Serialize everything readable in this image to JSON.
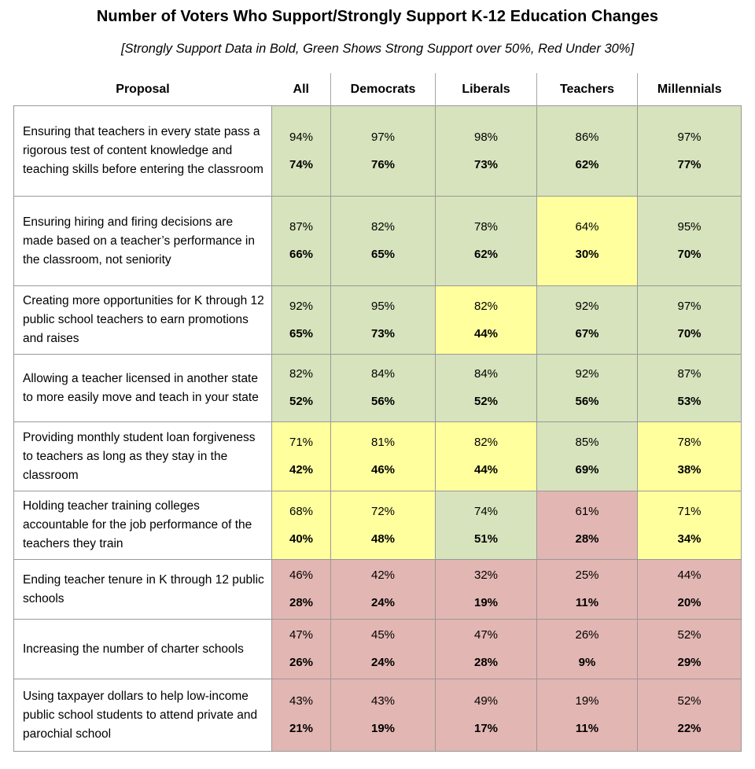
{
  "title": "Number of Voters Who Support/Strongly Support K-12 Education Changes",
  "subtitle": "[Strongly Support Data in Bold, Green Shows Strong Support over 50%, Red Under 30%]",
  "colors": {
    "green": "#d7e3bc",
    "yellow": "#ffff9e",
    "red": "#e2b6b2"
  },
  "chart_data": {
    "type": "table",
    "title": "Number of Voters Who Support/Strongly Support K-12 Education Changes",
    "subtitle": "[Strongly Support Data in Bold, Green Shows Strong Support over 50%, Red Under 30%]",
    "unit": "%",
    "columns": [
      "Proposal",
      "All",
      "Democrats",
      "Liberals",
      "Teachers",
      "Millennials"
    ],
    "rows": [
      {
        "proposal": "Ensuring that teachers in every state pass a rigorous test of content knowledge and teaching skills before entering the classroom",
        "cells": [
          {
            "support": 94,
            "strong": 74,
            "color": "green"
          },
          {
            "support": 97,
            "strong": 76,
            "color": "green"
          },
          {
            "support": 98,
            "strong": 73,
            "color": "green"
          },
          {
            "support": 86,
            "strong": 62,
            "color": "green"
          },
          {
            "support": 97,
            "strong": 77,
            "color": "green"
          }
        ]
      },
      {
        "proposal": "Ensuring hiring and firing decisions are made based on a teacher’s performance in the classroom, not seniority",
        "cells": [
          {
            "support": 87,
            "strong": 66,
            "color": "green"
          },
          {
            "support": 82,
            "strong": 65,
            "color": "green"
          },
          {
            "support": 78,
            "strong": 62,
            "color": "green"
          },
          {
            "support": 64,
            "strong": 30,
            "color": "yellow"
          },
          {
            "support": 95,
            "strong": 70,
            "color": "green"
          }
        ]
      },
      {
        "proposal": "Creating more opportunities for K through 12 public school teachers to earn promotions and raises",
        "cells": [
          {
            "support": 92,
            "strong": 65,
            "color": "green"
          },
          {
            "support": 95,
            "strong": 73,
            "color": "green"
          },
          {
            "support": 82,
            "strong": 44,
            "color": "yellow"
          },
          {
            "support": 92,
            "strong": 67,
            "color": "green"
          },
          {
            "support": 97,
            "strong": 70,
            "color": "green"
          }
        ]
      },
      {
        "proposal": "Allowing a teacher licensed in another state to more easily move and teach in your state",
        "cells": [
          {
            "support": 82,
            "strong": 52,
            "color": "green"
          },
          {
            "support": 84,
            "strong": 56,
            "color": "green"
          },
          {
            "support": 84,
            "strong": 52,
            "color": "green"
          },
          {
            "support": 92,
            "strong": 56,
            "color": "green"
          },
          {
            "support": 87,
            "strong": 53,
            "color": "green"
          }
        ]
      },
      {
        "proposal": "Providing monthly student loan forgiveness to teachers as long as they stay in the classroom",
        "cells": [
          {
            "support": 71,
            "strong": 42,
            "color": "yellow"
          },
          {
            "support": 81,
            "strong": 46,
            "color": "yellow"
          },
          {
            "support": 82,
            "strong": 44,
            "color": "yellow"
          },
          {
            "support": 85,
            "strong": 69,
            "color": "green"
          },
          {
            "support": 78,
            "strong": 38,
            "color": "yellow"
          }
        ]
      },
      {
        "proposal": "Holding teacher training colleges accountable for the job performance of the teachers they train",
        "cells": [
          {
            "support": 68,
            "strong": 40,
            "color": "yellow"
          },
          {
            "support": 72,
            "strong": 48,
            "color": "yellow"
          },
          {
            "support": 74,
            "strong": 51,
            "color": "green"
          },
          {
            "support": 61,
            "strong": 28,
            "color": "red"
          },
          {
            "support": 71,
            "strong": 34,
            "color": "yellow"
          }
        ]
      },
      {
        "proposal": "Ending teacher tenure in K through 12 public schools",
        "cells": [
          {
            "support": 46,
            "strong": 28,
            "color": "red"
          },
          {
            "support": 42,
            "strong": 24,
            "color": "red"
          },
          {
            "support": 32,
            "strong": 19,
            "color": "red"
          },
          {
            "support": 25,
            "strong": 11,
            "color": "red"
          },
          {
            "support": 44,
            "strong": 20,
            "color": "red"
          }
        ]
      },
      {
        "proposal": "Increasing the number of charter schools",
        "cells": [
          {
            "support": 47,
            "strong": 26,
            "color": "red"
          },
          {
            "support": 45,
            "strong": 24,
            "color": "red"
          },
          {
            "support": 47,
            "strong": 28,
            "color": "red"
          },
          {
            "support": 26,
            "strong": 9,
            "color": "red"
          },
          {
            "support": 52,
            "strong": 29,
            "color": "red"
          }
        ]
      },
      {
        "proposal": "Using taxpayer dollars to help low-income public school students to attend private and parochial school",
        "cells": [
          {
            "support": 43,
            "strong": 21,
            "color": "red"
          },
          {
            "support": 43,
            "strong": 19,
            "color": "red"
          },
          {
            "support": 49,
            "strong": 17,
            "color": "red"
          },
          {
            "support": 19,
            "strong": 11,
            "color": "red"
          },
          {
            "support": 52,
            "strong": 22,
            "color": "red"
          }
        ]
      }
    ]
  }
}
